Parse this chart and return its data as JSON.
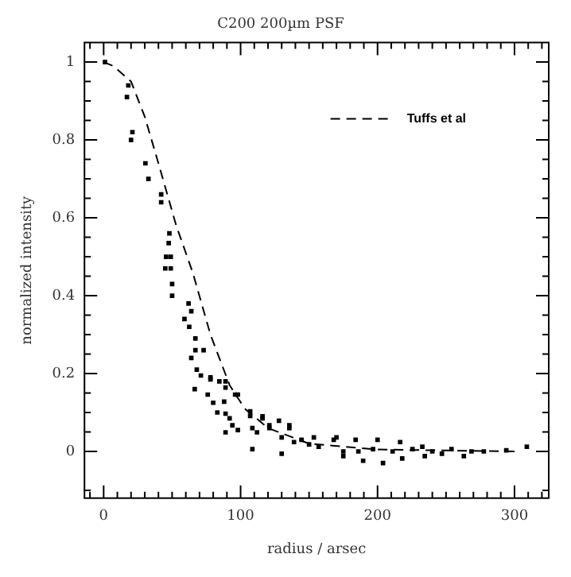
{
  "chart_data": {
    "type": "scatter",
    "title": "C200 200µm PSF",
    "xlabel": "radius / arsec",
    "ylabel": "normalized intensity",
    "xlim": [
      -14,
      325
    ],
    "ylim": [
      -0.12,
      1.05
    ],
    "xticks": [
      {
        "value": -10,
        "label": null
      },
      0,
      {
        "value": 10,
        "label": null
      },
      {
        "value": 20,
        "label": null
      },
      {
        "value": 30,
        "label": null
      },
      {
        "value": 40,
        "label": null
      },
      {
        "value": 50,
        "label": null
      },
      {
        "value": 60,
        "label": null
      },
      {
        "value": 70,
        "label": null
      },
      {
        "value": 80,
        "label": null
      },
      {
        "value": 90,
        "label": null
      },
      100,
      {
        "value": 110,
        "label": null
      },
      {
        "value": 120,
        "label": null
      },
      {
        "value": 130,
        "label": null
      },
      {
        "value": 140,
        "label": null
      },
      {
        "value": 150,
        "label": null
      },
      {
        "value": 160,
        "label": null
      },
      {
        "value": 170,
        "label": null
      },
      {
        "value": 180,
        "label": null
      },
      {
        "value": 190,
        "label": null
      },
      200,
      {
        "value": 210,
        "label": null
      },
      {
        "value": 220,
        "label": null
      },
      {
        "value": 230,
        "label": null
      },
      {
        "value": 240,
        "label": null
      },
      {
        "value": 250,
        "label": null
      },
      {
        "value": 260,
        "label": null
      },
      {
        "value": 270,
        "label": null
      },
      {
        "value": 280,
        "label": null
      },
      {
        "value": 290,
        "label": null
      },
      300,
      {
        "value": 310,
        "label": null
      },
      {
        "value": 320,
        "label": null
      }
    ],
    "yticks": [
      {
        "value": -0.1,
        "label": null
      },
      0,
      {
        "value": 0.05,
        "label": null
      },
      {
        "value": 0.1,
        "label": null
      },
      {
        "value": 0.15,
        "label": null
      },
      0.2,
      {
        "value": 0.25,
        "label": null
      },
      {
        "value": 0.3,
        "label": null
      },
      {
        "value": 0.35,
        "label": null
      },
      0.4,
      {
        "value": 0.45,
        "label": null
      },
      {
        "value": 0.5,
        "label": null
      },
      {
        "value": 0.55,
        "label": null
      },
      0.6,
      {
        "value": 0.65,
        "label": null
      },
      {
        "value": 0.7,
        "label": null
      },
      {
        "value": 0.75,
        "label": null
      },
      0.8,
      {
        "value": 0.85,
        "label": null
      },
      {
        "value": 0.9,
        "label": null
      },
      {
        "value": 0.95,
        "label": null
      },
      1
    ],
    "grid": false,
    "legend": "top right",
    "marker": "square",
    "series": [
      {
        "color": "#000000",
        "x": [
          1,
          18,
          17,
          21,
          20,
          30.5,
          32.7,
          42,
          42,
          48,
          47.5,
          45.6,
          49,
          45,
          49,
          50,
          50,
          62,
          64,
          59,
          62.5,
          67,
          67,
          64,
          68,
          71,
          66.5,
          78,
          73,
          84.5,
          76,
          80,
          83,
          89,
          92,
          94,
          98,
          89,
          88,
          96,
          107,
          108.6,
          112,
          108.6,
          116,
          121,
          128,
          130,
          135.6,
          139,
          153.5,
          157,
          168,
          175,
          130,
          78,
          89,
          89,
          98,
          107,
          116,
          121,
          135.6,
          144.5,
          150,
          170,
          175,
          184,
          186,
          189.5,
          196.7,
          200,
          204,
          211,
          216.5,
          218,
          225.5,
          232.7,
          234.5,
          240,
          247,
          254,
          263,
          268.6,
          277.6,
          294,
          309
        ],
        "values": [
          1,
          0.94,
          0.91,
          0.82,
          0.8,
          0.74,
          0.7,
          0.66,
          0.64,
          0.56,
          0.535,
          0.5,
          0.5,
          0.47,
          0.47,
          0.43,
          0.4,
          0.38,
          0.36,
          0.34,
          0.32,
          0.29,
          0.26,
          0.24,
          0.21,
          0.195,
          0.16,
          0.19,
          0.26,
          0.18,
          0.146,
          0.125,
          0.1,
          0.097,
          0.085,
          0.067,
          0.055,
          0.049,
          0.128,
          0.146,
          0.091,
          0.06,
          0.049,
          0.006,
          0.085,
          0.06,
          0.079,
          0.036,
          0.06,
          0.024,
          0.036,
          0.012,
          0.03,
          0,
          -0.006,
          0.185,
          0.18,
          0.164,
          0.146,
          0.103,
          0.09,
          0.067,
          0.067,
          0.03,
          0.018,
          0.036,
          -0.012,
          0.03,
          0,
          -0.024,
          0.006,
          0.03,
          -0.03,
          0,
          0.024,
          -0.018,
          0.006,
          0.012,
          -0.012,
          0,
          -0.006,
          0.006,
          -0.012,
          0,
          0,
          0.003,
          0.012
        ]
      },
      {
        "type": "line",
        "name": "Tuffs et al",
        "color": "#000000",
        "line_style": "dashed",
        "marker": "none",
        "x": [
          0,
          7,
          20,
          30,
          40,
          53,
          65,
          78,
          92,
          103,
          120,
          150,
          200,
          300
        ],
        "values": [
          1,
          0.99,
          0.95,
          0.86,
          0.74,
          0.58,
          0.46,
          0.3,
          0.17,
          0.11,
          0.06,
          0.02,
          0.005,
          0
        ]
      }
    ]
  }
}
